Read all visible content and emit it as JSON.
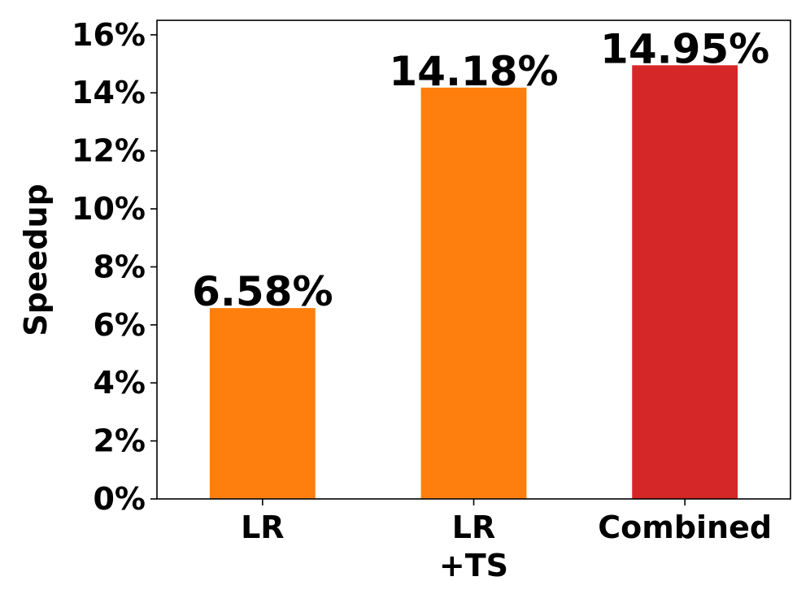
{
  "chart_data": {
    "type": "bar",
    "categories": [
      [
        "LR"
      ],
      [
        "LR",
        "+TS"
      ],
      [
        "Combined"
      ]
    ],
    "values": [
      6.58,
      14.18,
      14.95
    ],
    "value_labels": [
      "6.58%",
      "14.18%",
      "14.95%"
    ],
    "bar_colors": [
      "#ff7f0e",
      "#ff7f0e",
      "#d62728"
    ],
    "title": "",
    "xlabel": "",
    "ylabel": "Speedup",
    "ylim": [
      0,
      16.5
    ],
    "yticks": [
      0,
      2,
      4,
      6,
      8,
      10,
      12,
      14,
      16
    ],
    "ytick_labels": [
      "0%",
      "2%",
      "4%",
      "6%",
      "8%",
      "10%",
      "12%",
      "14%",
      "16%"
    ],
    "grid": false,
    "legend": "none"
  }
}
